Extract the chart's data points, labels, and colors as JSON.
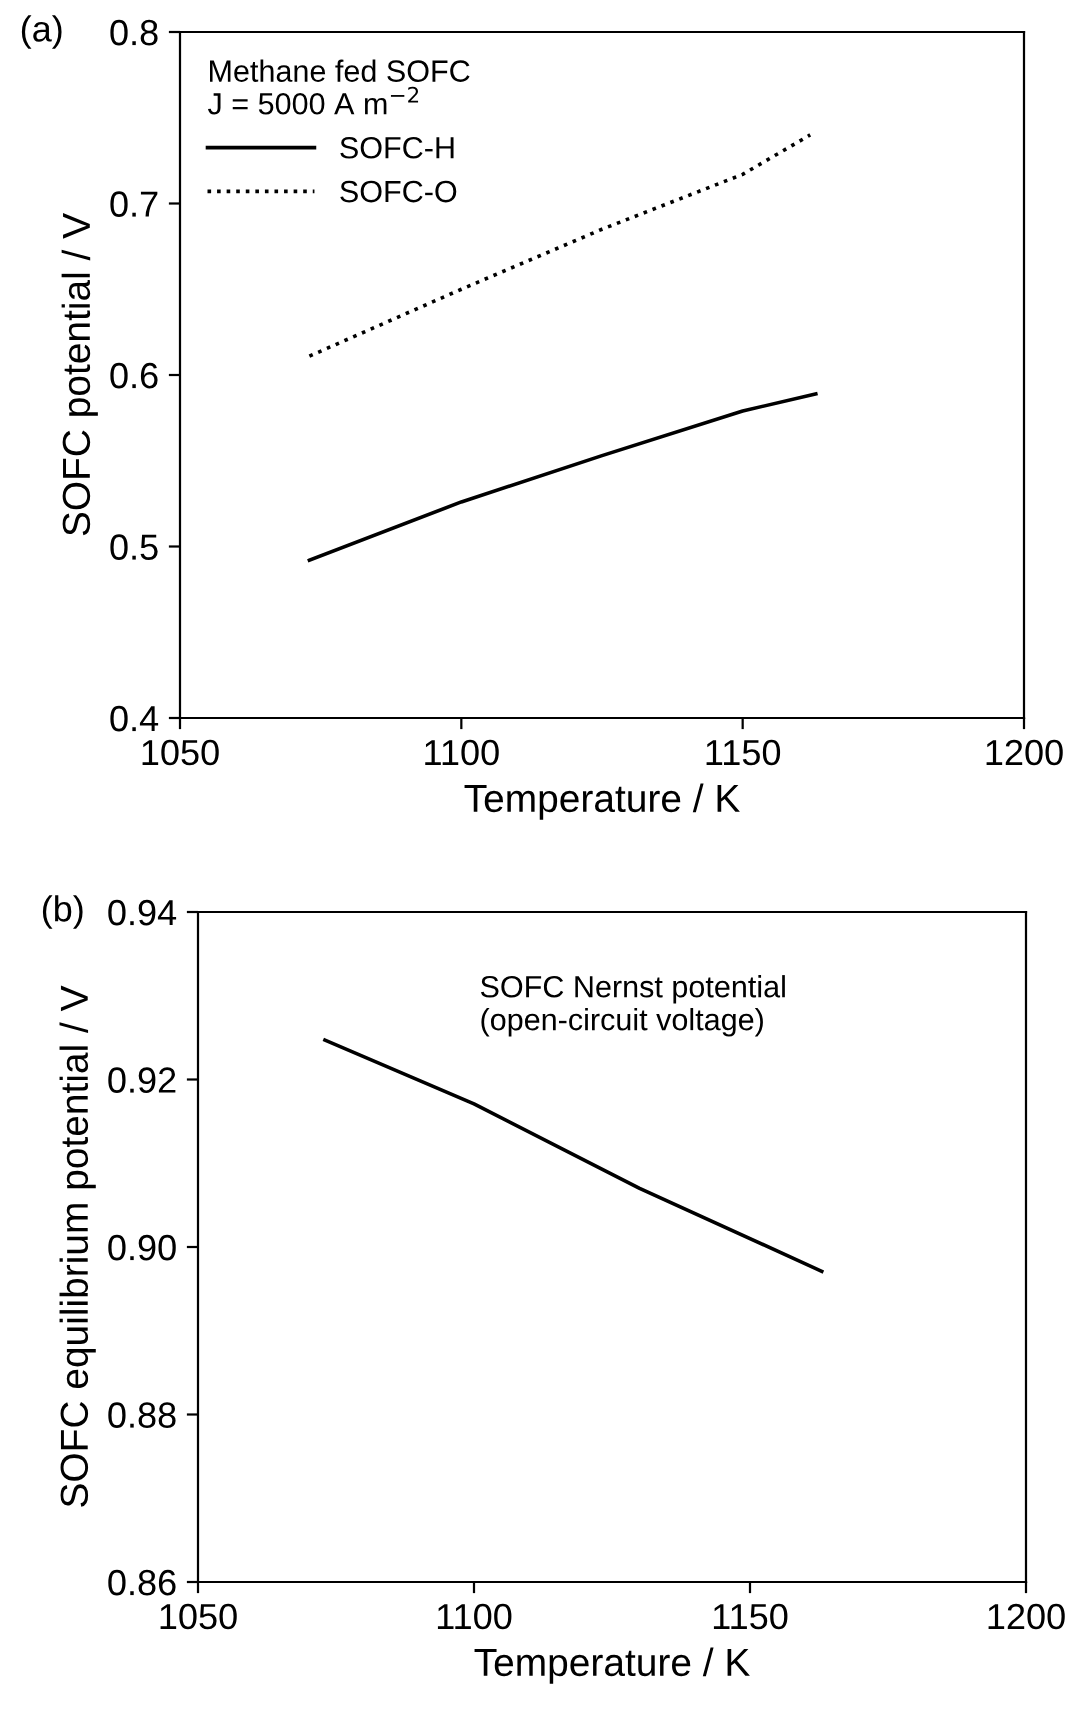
{
  "chart_data": [
    {
      "type": "line",
      "xlabel": "Temperature / K",
      "ylabel": "SOFC potential / V",
      "legend_title": "Methane fed SOFC\nJ = 5000 A m$^{−2}$",
      "legend": "top left",
      "annotations": [
        "(a)"
      ],
      "xlim": [
        1050,
        1200
      ],
      "xticks": [
        1050,
        1100,
        1150,
        1200
      ],
      "ylim": [
        0.4,
        0.8
      ],
      "yticks": [
        0.4,
        0.5,
        0.6,
        0.7,
        0.8
      ],
      "grid": false,
      "series": [
        {
          "name": "SOFC-H",
          "color": "#000000",
          "line_style": "solid",
          "x": [
            1073,
            1100,
            1125,
            1150,
            1163
          ],
          "values": [
            0.492,
            0.526,
            0.553,
            0.579,
            0.589
          ]
        },
        {
          "name": "SOFC-O",
          "color": "#000000",
          "line_style": "dotted",
          "x": [
            1073,
            1100,
            1125,
            1150,
            1162
          ],
          "values": [
            0.611,
            0.65,
            0.685,
            0.717,
            0.74
          ]
        }
      ]
    },
    {
      "type": "line",
      "xlabel": "Temperature / K",
      "ylabel": "SOFC equilibrium potential / V",
      "annotations": [
        "(b)",
        "SOFC Nernst potential\n(open-circuit voltage)"
      ],
      "xlim": [
        1050,
        1200
      ],
      "xticks": [
        1050,
        1100,
        1150,
        1200
      ],
      "ylim": [
        0.86,
        0.94
      ],
      "yticks": [
        {
          "value": 0.86,
          "label": "0.86"
        },
        {
          "value": 0.88,
          "label": "0.88"
        },
        {
          "value": 0.9,
          "label": "0.90"
        },
        {
          "value": 0.92,
          "label": "0.92"
        },
        {
          "value": 0.94,
          "label": "0.94"
        }
      ],
      "grid": false,
      "series": [
        {
          "color": "#000000",
          "line_style": "solid",
          "x": [
            1073,
            1100,
            1130,
            1163
          ],
          "values": [
            0.9247,
            0.9171,
            0.907,
            0.8971
          ]
        }
      ]
    }
  ]
}
